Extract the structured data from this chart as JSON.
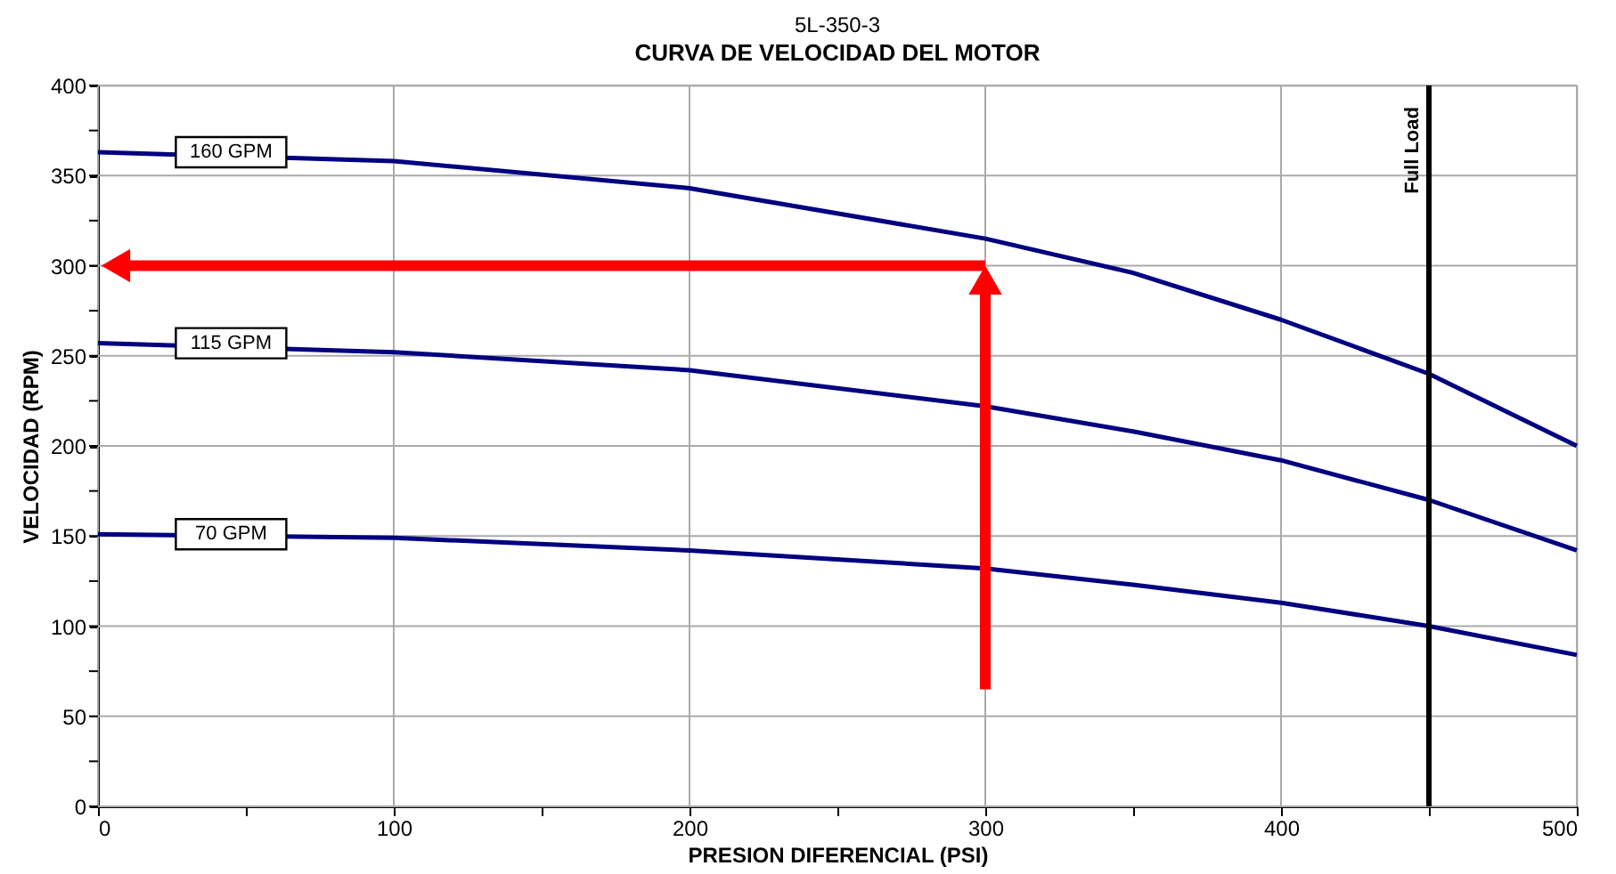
{
  "chart_data": {
    "type": "line",
    "title": "5L-350-3",
    "subtitle": "CURVA DE VELOCIDAD DEL MOTOR",
    "xlabel": "PRESION DIFERENCIAL (PSI)",
    "ylabel": "VELOCIDAD (RPM)",
    "x": [
      0,
      100,
      200,
      300,
      350,
      400,
      450,
      500
    ],
    "series": [
      {
        "name": "160 GPM",
        "color": "#000080",
        "values": [
          363,
          358,
          343,
          315,
          296,
          270,
          240,
          200
        ]
      },
      {
        "name": "115 GPM",
        "color": "#000080",
        "values": [
          257,
          252,
          242,
          222,
          208,
          192,
          170,
          142
        ]
      },
      {
        "name": "70 GPM",
        "color": "#000080",
        "values": [
          151,
          149,
          142,
          132,
          123,
          113,
          100,
          84
        ]
      }
    ],
    "xlim": [
      0,
      500
    ],
    "ylim": [
      0,
      400
    ],
    "xticks": [
      0,
      {
        "value": 50,
        "label": null
      },
      100,
      {
        "value": 150,
        "label": null
      },
      200,
      {
        "value": 250,
        "label": null
      },
      300,
      {
        "value": 350,
        "label": null
      },
      400,
      {
        "value": 450,
        "label": null
      },
      500
    ],
    "yticks": [
      0,
      {
        "value": 25,
        "label": null
      },
      50,
      {
        "value": 75,
        "label": null
      },
      100,
      {
        "value": 125,
        "label": null
      },
      150,
      {
        "value": 175,
        "label": null
      },
      200,
      {
        "value": 225,
        "label": null
      },
      250,
      {
        "value": 275,
        "label": null
      },
      300,
      {
        "value": 325,
        "label": null
      },
      350,
      {
        "value": 375,
        "label": null
      },
      400
    ],
    "ref_lines": [
      {
        "axis": "x",
        "value": 450,
        "label": "Full Load",
        "color": "#000000"
      }
    ],
    "grid": true,
    "legend": false,
    "marker": "none",
    "line_style": "solid"
  }
}
